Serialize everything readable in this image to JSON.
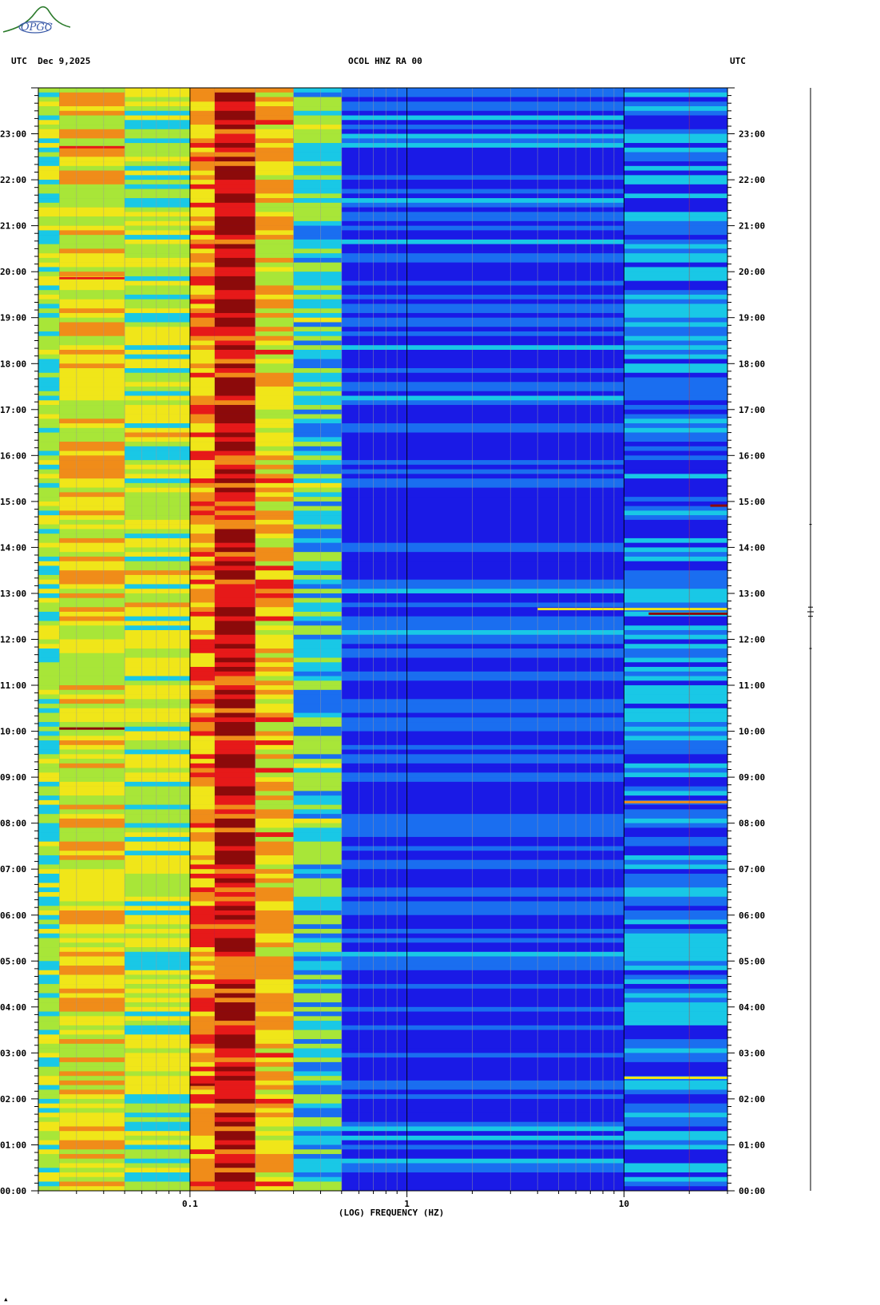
{
  "header": {
    "left": "UTC  Dec 9,2025",
    "center": "OCOL HNZ RA 00",
    "right": "UTC"
  },
  "logo": {
    "text": "OPGC",
    "color": "#2a7a2a"
  },
  "footer_mark": "▴",
  "chart_data": {
    "type": "heatmap",
    "title": "OCOL HNZ RA 00",
    "xlabel": "(LOG) FREQUENCY (HZ)",
    "x_scale": "log",
    "xlim": [
      0.02,
      30
    ],
    "x_ticks": [
      {
        "value": 0.1,
        "label": "0.1"
      },
      {
        "value": 1,
        "label": "1"
      },
      {
        "value": 10,
        "label": "10"
      }
    ],
    "y_unit": "UTC hour",
    "ylim": [
      0,
      24
    ],
    "y_ticks": [
      {
        "value": 23,
        "label": "23:00"
      },
      {
        "value": 22,
        "label": "22:00"
      },
      {
        "value": 21,
        "label": "21:00"
      },
      {
        "value": 20,
        "label": "20:00"
      },
      {
        "value": 19,
        "label": "19:00"
      },
      {
        "value": 18,
        "label": "18:00"
      },
      {
        "value": 17,
        "label": "17:00"
      },
      {
        "value": 16,
        "label": "16:00"
      },
      {
        "value": 15,
        "label": "15:00"
      },
      {
        "value": 14,
        "label": "14:00"
      },
      {
        "value": 13,
        "label": "13:00"
      },
      {
        "value": 12,
        "label": "12:00"
      },
      {
        "value": 11,
        "label": "11:00"
      },
      {
        "value": 10,
        "label": "10:00"
      },
      {
        "value": 9,
        "label": "09:00"
      },
      {
        "value": 8,
        "label": "08:00"
      },
      {
        "value": 7,
        "label": "07:00"
      },
      {
        "value": 6,
        "label": "06:00"
      },
      {
        "value": 5,
        "label": "05:00"
      },
      {
        "value": 4,
        "label": "04:00"
      },
      {
        "value": 3,
        "label": "03:00"
      },
      {
        "value": 2,
        "label": "02:00"
      },
      {
        "value": 1,
        "label": "01:00"
      },
      {
        "value": 0,
        "label": "00:00"
      }
    ],
    "colormap": [
      "#1a1ae6",
      "#1a6ef0",
      "#19c8e6",
      "#a8e638",
      "#f0e619",
      "#f08c19",
      "#e61919",
      "#8c0a0a"
    ],
    "frequency_bands": [
      {
        "f0": 0.02,
        "f1": 0.025,
        "level": 0.42
      },
      {
        "f0": 0.025,
        "f1": 0.05,
        "level": 0.55
      },
      {
        "f0": 0.05,
        "f1": 0.1,
        "level": 0.46
      },
      {
        "f0": 0.1,
        "f1": 0.13,
        "level": 0.68
      },
      {
        "f0": 0.13,
        "f1": 0.2,
        "level": 0.86
      },
      {
        "f0": 0.2,
        "f1": 0.3,
        "level": 0.6
      },
      {
        "f0": 0.3,
        "f1": 0.5,
        "level": 0.34
      },
      {
        "f0": 0.5,
        "f1": 10,
        "level": 0.1
      },
      {
        "f0": 10,
        "f1": 30,
        "level": 0.2
      }
    ],
    "vertical_lines_hz": [
      0.03,
      0.04,
      0.05,
      0.06,
      0.07,
      0.08,
      0.09,
      0.1,
      0.2,
      0.3,
      0.4,
      0.5,
      0.6,
      0.7,
      0.8,
      0.9,
      1,
      2,
      3,
      4,
      5,
      6,
      7,
      8,
      9,
      10,
      20
    ],
    "events": [
      {
        "hour": 12.55,
        "f0": 13,
        "f1": 30,
        "level": 1.0
      },
      {
        "hour": 12.65,
        "f0": 4,
        "f1": 30,
        "level": 0.55
      },
      {
        "hour": 10.05,
        "f0": 0.025,
        "f1": 0.05,
        "level": 0.95
      },
      {
        "hour": 22.7,
        "f0": 0.025,
        "f1": 0.05,
        "level": 0.85
      },
      {
        "hour": 19.85,
        "f0": 0.025,
        "f1": 0.05,
        "level": 0.8
      },
      {
        "hour": 2.3,
        "f0": 0.1,
        "f1": 0.13,
        "level": 0.9
      },
      {
        "hour": 2.45,
        "f0": 10,
        "f1": 30,
        "level": 0.5
      },
      {
        "hour": 8.45,
        "f0": 10,
        "f1": 30,
        "level": 0.65
      },
      {
        "hour": 14.9,
        "f0": 25,
        "f1": 30,
        "level": 0.95
      }
    ],
    "colors": {
      "axis": "#000000",
      "grid": "#9a9a9a",
      "red_line": "#d93020"
    }
  }
}
